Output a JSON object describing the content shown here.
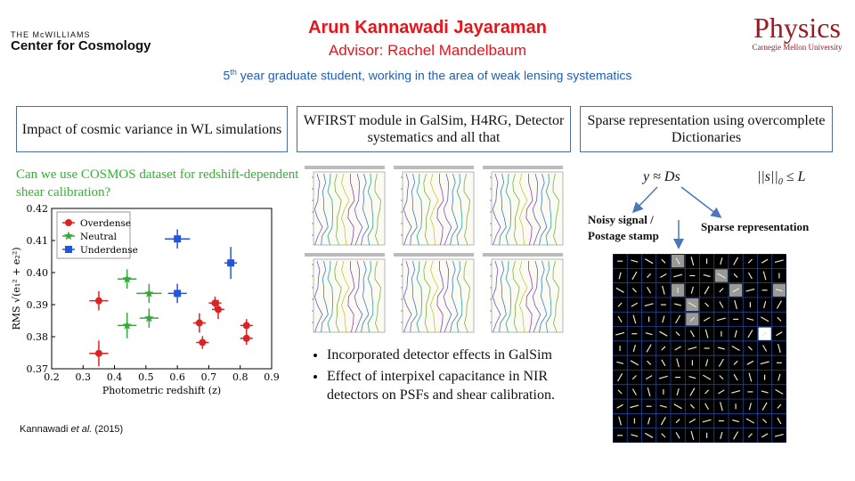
{
  "header": {
    "logo_small": "THE McWILLIAMS",
    "logo_big": "Center for Cosmology",
    "name": "Arun Kannawadi Jayaraman",
    "advisor": "Advisor: Rachel Mandelbaum",
    "subtitle_num": "5",
    "subtitle_sup": "th",
    "subtitle_rest": " year graduate student, working in the area of weak lensing systematics",
    "physics": "Physics",
    "cmu": "Carnegie Mellon University"
  },
  "boxes": [
    "Impact of cosmic variance in WL simulations",
    "WFIRST module in GalSim, H4RG, Detector systematics and all that",
    "Sparse representation using overcomplete Dictionaries"
  ],
  "question": "Can we use COSMOS dataset for redshift-dependent shear calibration?",
  "citation": {
    "before": "Kannawadi ",
    "italic": "et al.",
    "after": " (2015)"
  },
  "bullets": [
    "Incorporated detector effects in GalSim",
    "Effect of interpixel capacitance in NIR detectors on PSFs and shear calibration."
  ],
  "sparse": {
    "formula1": "y ≈ Ds",
    "formula2": "||s||",
    "formula2_sub": "0",
    "formula2_rest": " ≤ L",
    "label_signal_1": "Noisy signal /",
    "label_signal_2": "Postage stamp",
    "label_sparse": "Sparse representation"
  },
  "chart_data": {
    "type": "scatter",
    "xlabel": "Photometric redshift (z)",
    "ylabel": "RMS √(e₁² + e₂²)",
    "xlim": [
      0.2,
      0.9
    ],
    "ylim": [
      0.37,
      0.42
    ],
    "xticks": [
      "0.2",
      "0.3",
      "0.4",
      "0.5",
      "0.6",
      "0.7",
      "0.8",
      "0.9"
    ],
    "yticks": [
      "0.37",
      "0.38",
      "0.39",
      "0.40",
      "0.41",
      "0.42"
    ],
    "legend_position": "top-left",
    "series": [
      {
        "name": "Overdense",
        "color": "#dd2222",
        "marker": "circle",
        "points": [
          {
            "x": 0.35,
            "y": 0.3912,
            "xe": 0.03,
            "ye": 0.003
          },
          {
            "x": 0.35,
            "y": 0.3748,
            "xe": 0.03,
            "ye": 0.004
          },
          {
            "x": 0.67,
            "y": 0.3843,
            "xe": 0.02,
            "ye": 0.003
          },
          {
            "x": 0.68,
            "y": 0.3782,
            "xe": 0.02,
            "ye": 0.002
          },
          {
            "x": 0.72,
            "y": 0.3905,
            "xe": 0.02,
            "ye": 0.002
          },
          {
            "x": 0.73,
            "y": 0.3885,
            "xe": 0.02,
            "ye": 0.003
          },
          {
            "x": 0.82,
            "y": 0.3835,
            "xe": 0.02,
            "ye": 0.002
          },
          {
            "x": 0.82,
            "y": 0.3795,
            "xe": 0.02,
            "ye": 0.002
          }
        ]
      },
      {
        "name": "Neutral",
        "color": "#33aa33",
        "marker": "star",
        "points": [
          {
            "x": 0.44,
            "y": 0.398,
            "xe": 0.03,
            "ye": 0.003
          },
          {
            "x": 0.44,
            "y": 0.3835,
            "xe": 0.03,
            "ye": 0.004
          },
          {
            "x": 0.51,
            "y": 0.3935,
            "xe": 0.04,
            "ye": 0.003
          },
          {
            "x": 0.51,
            "y": 0.3858,
            "xe": 0.03,
            "ye": 0.003
          }
        ]
      },
      {
        "name": "Underdense",
        "color": "#2255dd",
        "marker": "square",
        "points": [
          {
            "x": 0.6,
            "y": 0.4105,
            "xe": 0.04,
            "ye": 0.003
          },
          {
            "x": 0.6,
            "y": 0.3935,
            "xe": 0.03,
            "ye": 0.003
          },
          {
            "x": 0.77,
            "y": 0.403,
            "xe": 0.02,
            "ye": 0.005
          }
        ]
      }
    ]
  }
}
